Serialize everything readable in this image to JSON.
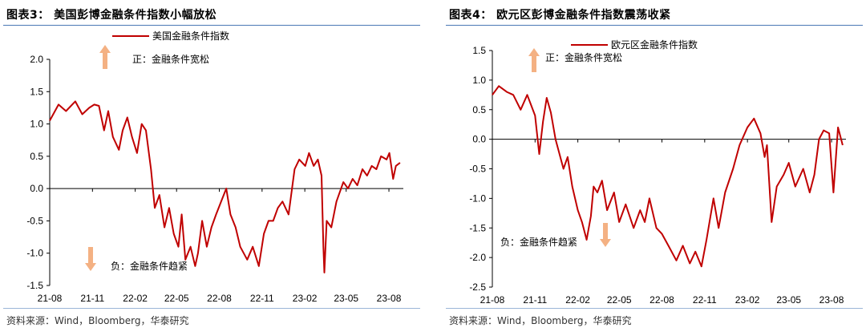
{
  "panels": [
    {
      "figure_title": "图表3： 美国彭博金融条件指数小幅放松",
      "source": "资料来源：Wind，Bloomberg，华泰研究",
      "annotations": {
        "up": "正：金融条件宽松",
        "down": "负：金融条件趋紧"
      },
      "colors": {
        "line": "#c00000",
        "arrow": "#f4b183",
        "rule": "#4a78b5"
      }
    },
    {
      "figure_title": "图表4： 欧元区彭博金融条件指数震荡收紧",
      "source": "资料来源：Wind，Bloomberg，华泰研究",
      "annotations": {
        "up": "正：金融条件宽松",
        "down": "负：金融条件趋紧"
      },
      "colors": {
        "line": "#c00000",
        "arrow": "#f4b183",
        "rule": "#4a78b5"
      }
    }
  ],
  "chart_data": [
    {
      "type": "line",
      "title": "",
      "series": [
        {
          "name": "美国金融条件指数",
          "color": "#c00000",
          "x": [
            "2021-08-01",
            "2021-08-20",
            "2021-09-05",
            "2021-09-25",
            "2021-10-10",
            "2021-10-25",
            "2021-11-05",
            "2021-11-15",
            "2021-11-26",
            "2021-12-05",
            "2021-12-15",
            "2021-12-28",
            "2022-01-05",
            "2022-01-15",
            "2022-01-25",
            "2022-02-05",
            "2022-02-15",
            "2022-02-24",
            "2022-03-07",
            "2022-03-15",
            "2022-03-25",
            "2022-04-05",
            "2022-04-15",
            "2022-04-25",
            "2022-05-05",
            "2022-05-12",
            "2022-05-20",
            "2022-05-31",
            "2022-06-10",
            "2022-06-16",
            "2022-06-25",
            "2022-07-05",
            "2022-07-15",
            "2022-07-25",
            "2022-08-05",
            "2022-08-16",
            "2022-08-25",
            "2022-09-05",
            "2022-09-15",
            "2022-09-30",
            "2022-10-12",
            "2022-10-25",
            "2022-11-05",
            "2022-11-15",
            "2022-11-25",
            "2022-12-05",
            "2022-12-15",
            "2022-12-28",
            "2023-01-10",
            "2023-01-20",
            "2023-02-02",
            "2023-02-10",
            "2023-02-20",
            "2023-03-01",
            "2023-03-09",
            "2023-03-13",
            "2023-03-15",
            "2023-03-20",
            "2023-03-30",
            "2023-04-10",
            "2023-04-25",
            "2023-05-05",
            "2023-05-15",
            "2023-05-25",
            "2023-06-05",
            "2023-06-15",
            "2023-06-25",
            "2023-07-05",
            "2023-07-15",
            "2023-07-27",
            "2023-08-02",
            "2023-08-10",
            "2023-08-16",
            "2023-08-25"
          ],
          "values": [
            1.05,
            1.3,
            1.2,
            1.35,
            1.15,
            1.25,
            1.3,
            1.28,
            0.9,
            1.2,
            0.8,
            0.6,
            0.9,
            1.1,
            0.8,
            0.55,
            1.0,
            0.9,
            0.3,
            -0.3,
            -0.1,
            -0.6,
            -0.3,
            -0.7,
            -0.9,
            -0.4,
            -1.1,
            -0.9,
            -1.2,
            -1.0,
            -0.5,
            -0.9,
            -0.6,
            -0.4,
            -0.2,
            0.0,
            -0.4,
            -0.6,
            -0.9,
            -1.1,
            -0.9,
            -1.2,
            -0.7,
            -0.5,
            -0.5,
            -0.3,
            -0.2,
            -0.4,
            0.3,
            0.45,
            0.35,
            0.55,
            0.35,
            0.45,
            0.2,
            -0.9,
            -1.3,
            -0.5,
            -0.6,
            -0.2,
            0.1,
            0.0,
            0.15,
            0.05,
            0.3,
            0.2,
            0.35,
            0.3,
            0.5,
            0.45,
            0.55,
            0.15,
            0.35,
            0.4
          ]
        }
      ],
      "x_ticks": [
        "21-08",
        "21-11",
        "22-02",
        "22-05",
        "22-08",
        "22-11",
        "23-02",
        "23-05",
        "23-08"
      ],
      "x_tick_dates": [
        "2021-08-01",
        "2021-11-01",
        "2022-02-01",
        "2022-05-01",
        "2022-08-01",
        "2022-11-01",
        "2023-02-01",
        "2023-05-01",
        "2023-08-01"
      ],
      "xlim": [
        "2021-08-01",
        "2023-09-01"
      ],
      "ylim": [
        -1.5,
        2.0
      ],
      "y_ticks": [
        -1.5,
        -1.0,
        -0.5,
        0.0,
        0.5,
        1.0,
        1.5,
        2.0
      ],
      "y_tick_labels": [
        "-1.5",
        "-1.0",
        "-0.5",
        "0.0",
        "0.5",
        "1.0",
        "1.5",
        "2.0"
      ],
      "legend": "top-center",
      "grid": false
    },
    {
      "type": "line",
      "title": "",
      "series": [
        {
          "name": "欧元区金融条件指数",
          "color": "#c00000",
          "x": [
            "2021-08-01",
            "2021-08-15",
            "2021-09-01",
            "2021-09-15",
            "2021-10-01",
            "2021-10-15",
            "2021-11-01",
            "2021-11-10",
            "2021-11-18",
            "2021-11-26",
            "2021-12-05",
            "2021-12-15",
            "2022-01-01",
            "2022-01-10",
            "2022-01-20",
            "2022-02-01",
            "2022-02-10",
            "2022-02-20",
            "2022-03-01",
            "2022-03-07",
            "2022-03-15",
            "2022-03-25",
            "2022-04-05",
            "2022-04-20",
            "2022-05-01",
            "2022-05-15",
            "2022-06-01",
            "2022-06-15",
            "2022-06-25",
            "2022-07-05",
            "2022-07-20",
            "2022-08-01",
            "2022-08-15",
            "2022-09-01",
            "2022-09-15",
            "2022-09-30",
            "2022-10-12",
            "2022-10-25",
            "2022-11-05",
            "2022-11-20",
            "2022-12-01",
            "2022-12-15",
            "2023-01-01",
            "2023-01-15",
            "2023-02-01",
            "2023-02-15",
            "2023-03-01",
            "2023-03-10",
            "2023-03-15",
            "2023-03-25",
            "2023-04-05",
            "2023-04-20",
            "2023-05-01",
            "2023-05-15",
            "2023-06-01",
            "2023-06-15",
            "2023-06-25",
            "2023-07-05",
            "2023-07-15",
            "2023-07-27",
            "2023-08-05",
            "2023-08-15",
            "2023-08-25"
          ],
          "values": [
            0.75,
            0.9,
            0.8,
            0.75,
            0.5,
            0.75,
            0.4,
            -0.25,
            0.3,
            0.7,
            0.45,
            0.0,
            -0.5,
            -0.3,
            -0.8,
            -1.2,
            -1.4,
            -1.7,
            -1.3,
            -0.8,
            -0.9,
            -0.7,
            -1.2,
            -0.9,
            -1.4,
            -1.1,
            -1.5,
            -1.2,
            -1.4,
            -1.0,
            -1.5,
            -1.6,
            -1.8,
            -2.05,
            -1.8,
            -2.1,
            -1.9,
            -2.15,
            -1.7,
            -1.0,
            -1.5,
            -0.9,
            -0.5,
            -0.1,
            0.2,
            0.35,
            0.1,
            -0.3,
            -0.1,
            -1.4,
            -0.8,
            -0.6,
            -0.4,
            -0.8,
            -0.5,
            -0.9,
            -0.6,
            0.0,
            0.15,
            0.1,
            -0.9,
            0.2,
            -0.1
          ]
        }
      ],
      "x_ticks": [
        "21-08",
        "21-11",
        "22-02",
        "22-05",
        "22-08",
        "22-11",
        "23-02",
        "23-05",
        "23-08"
      ],
      "x_tick_dates": [
        "2021-08-01",
        "2021-11-01",
        "2022-02-01",
        "2022-05-01",
        "2022-08-01",
        "2022-11-01",
        "2023-02-01",
        "2023-05-01",
        "2023-08-01"
      ],
      "xlim": [
        "2021-08-01",
        "2023-09-01"
      ],
      "ylim": [
        -2.5,
        1.5
      ],
      "y_ticks": [
        -2.5,
        -2.0,
        -1.5,
        -1.0,
        -0.5,
        0.0,
        0.5,
        1.0,
        1.5
      ],
      "y_tick_labels": [
        "-2.5",
        "-2.0",
        "-1.5",
        "-1.0",
        "-0.5",
        "0.0",
        "0.5",
        "1.0",
        "1.5"
      ],
      "legend": "top-center",
      "grid": false
    }
  ]
}
